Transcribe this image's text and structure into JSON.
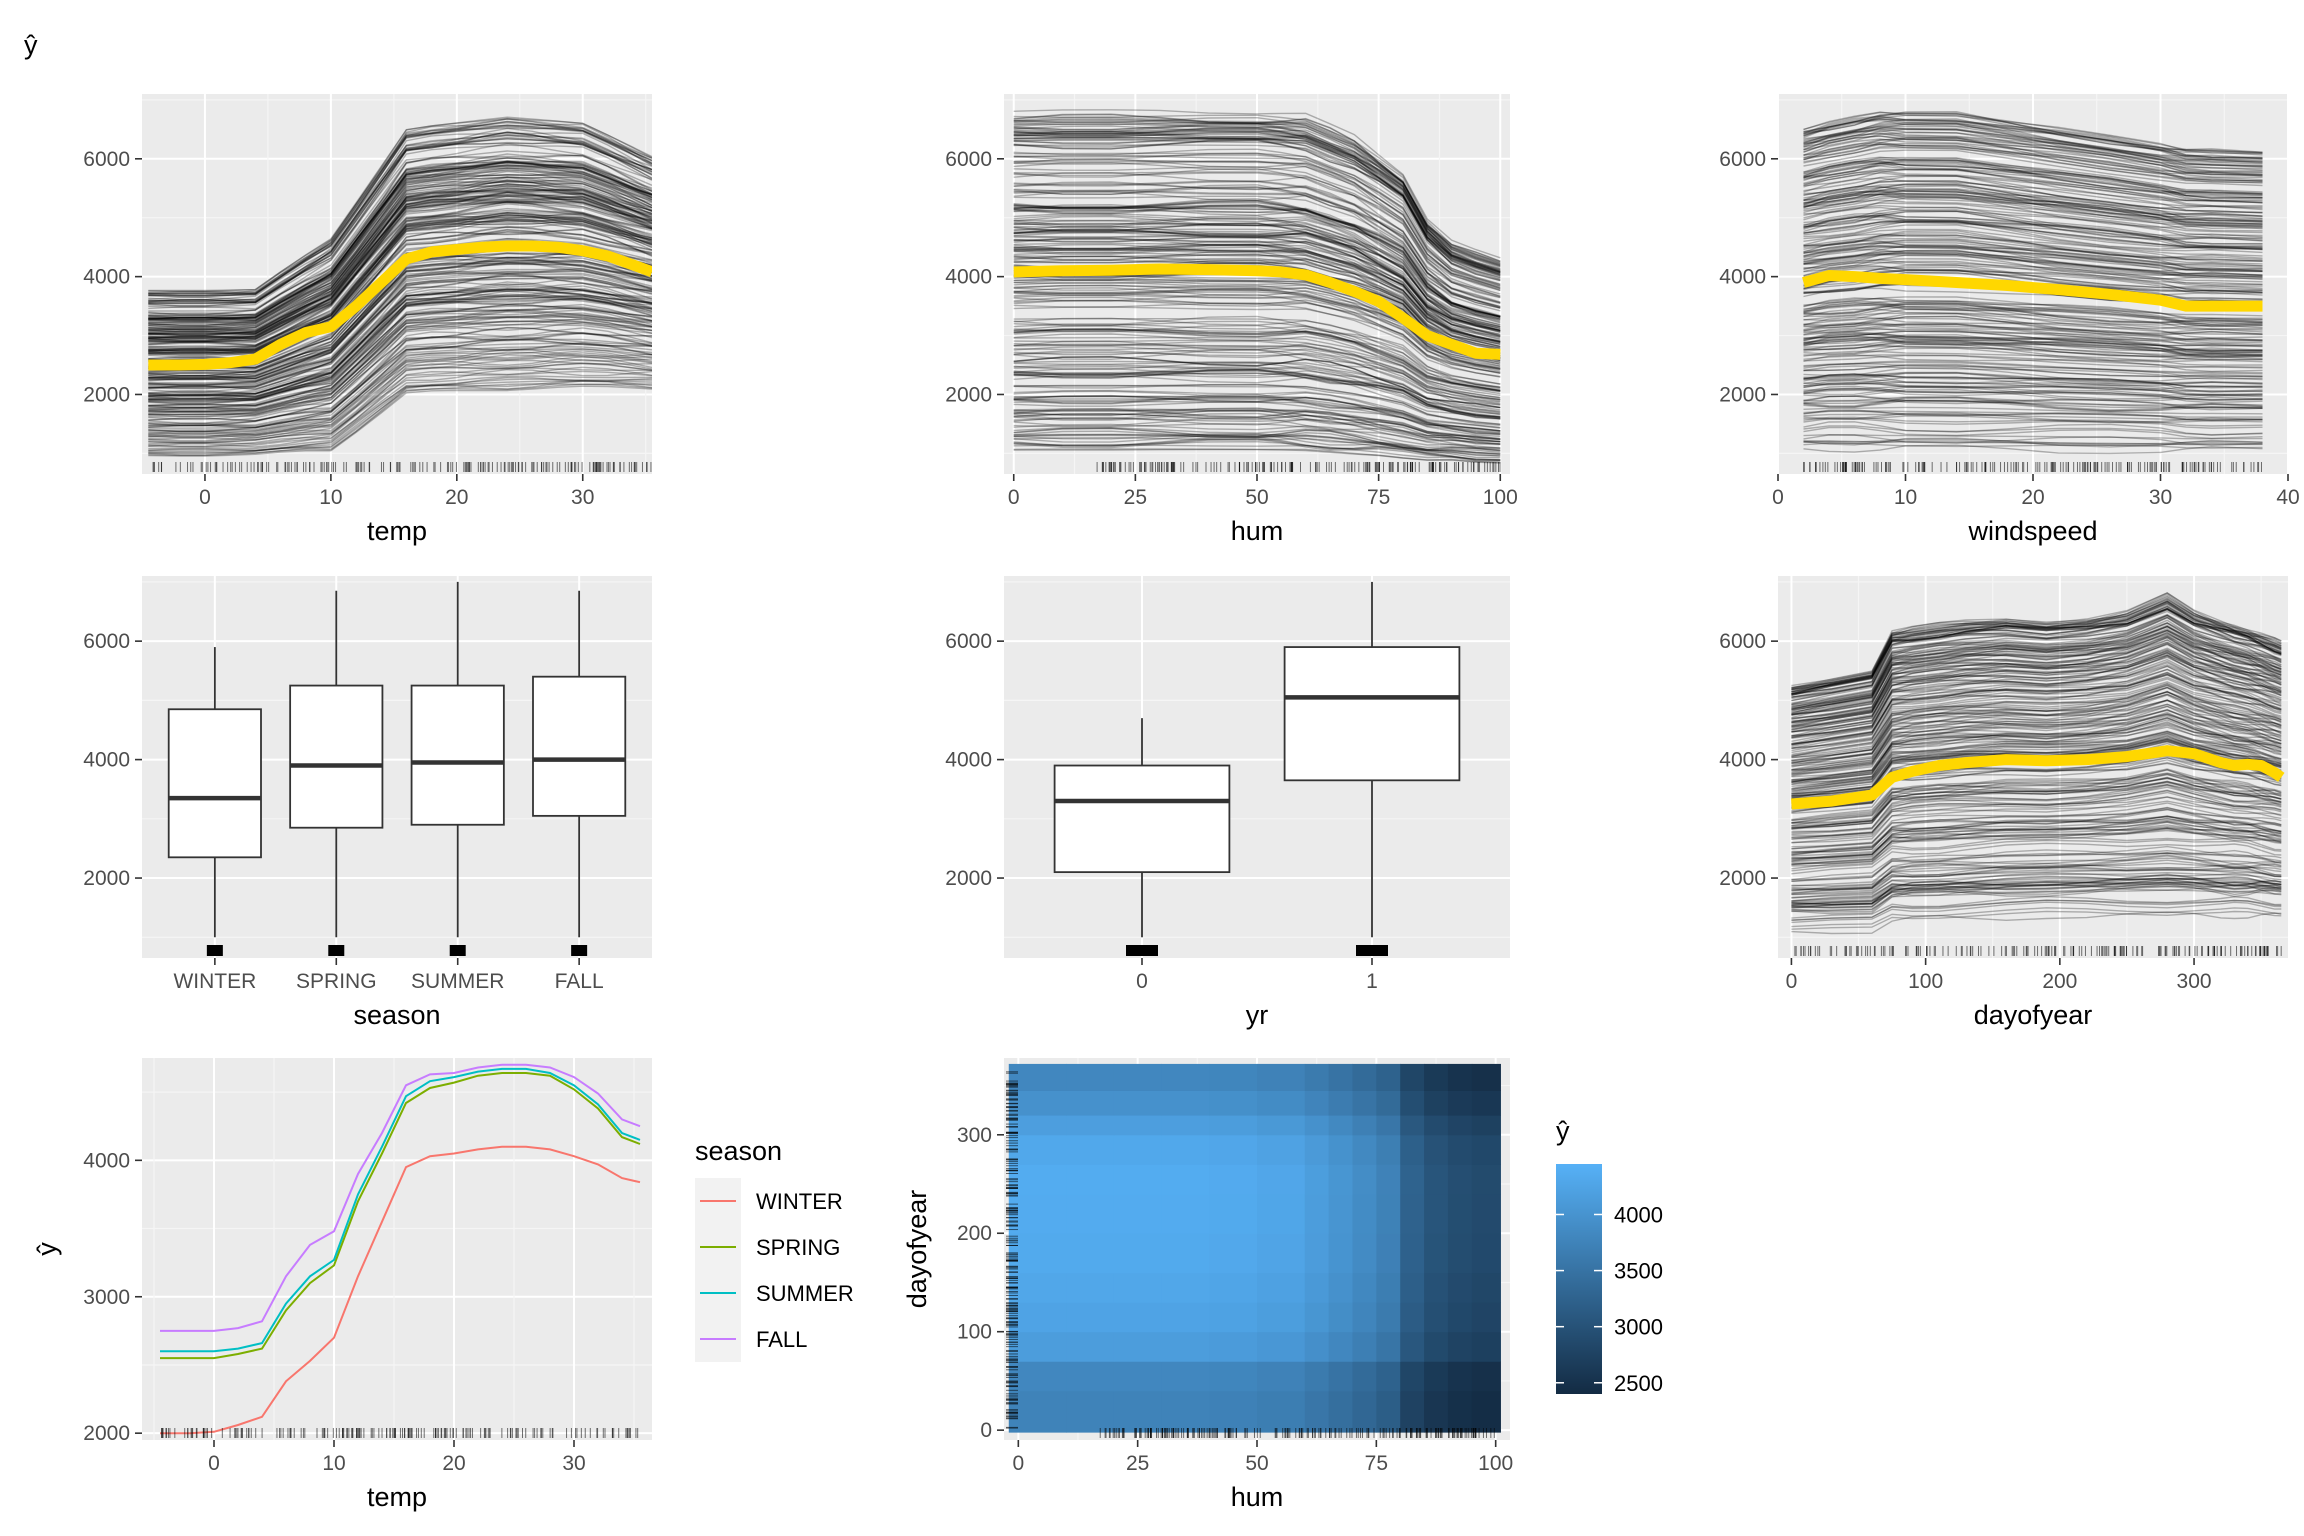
{
  "page": {
    "yhat_label": "ŷ"
  },
  "chart_data": [
    {
      "id": "ice-temp",
      "type": "line",
      "xlabel": "temp",
      "ylabel": "",
      "xlim": [
        -5,
        35.5
      ],
      "ylim": [
        650,
        7100
      ],
      "xticks": [
        0,
        10,
        20,
        30
      ],
      "yticks": [
        2000,
        4000,
        6000
      ],
      "grid": true,
      "pdp_color": "#FFD700",
      "pdp": {
        "x": [
          -4.5,
          -2,
          0,
          2,
          4,
          6,
          8,
          10,
          12,
          14,
          16,
          18,
          20,
          22,
          24,
          26,
          28,
          30,
          32,
          34,
          35.5
        ],
        "y": [
          2500,
          2500,
          2510,
          2540,
          2600,
          2850,
          3050,
          3150,
          3500,
          3900,
          4300,
          4420,
          4460,
          4500,
          4520,
          4520,
          4500,
          4440,
          4350,
          4200,
          4080
        ]
      },
      "ice_band": {
        "x": [
          -4.5,
          4,
          10,
          16,
          24,
          30,
          35.5
        ],
        "low": [
          900,
          900,
          950,
          1950,
          2000,
          2050,
          2050
        ],
        "high": [
          3750,
          3750,
          4600,
          6500,
          6700,
          6600,
          6050
        ]
      },
      "rug": {
        "from": -4.5,
        "to": 35.5
      }
    },
    {
      "id": "ice-hum",
      "type": "line",
      "xlabel": "hum",
      "ylabel": "",
      "xlim": [
        -2,
        102
      ],
      "ylim": [
        650,
        7100
      ],
      "xticks": [
        0,
        25,
        50,
        75,
        100
      ],
      "yticks": [
        2000,
        4000,
        6000
      ],
      "grid": true,
      "pdp_color": "#FFD700",
      "pdp": {
        "x": [
          0,
          10,
          20,
          30,
          40,
          50,
          55,
          60,
          65,
          70,
          75,
          80,
          85,
          90,
          95,
          100
        ],
        "y": [
          4080,
          4100,
          4110,
          4130,
          4120,
          4100,
          4080,
          4030,
          3900,
          3750,
          3580,
          3300,
          3000,
          2850,
          2700,
          2680
        ]
      },
      "ice_band": {
        "x": [
          0,
          25,
          50,
          60,
          70,
          80,
          85,
          90,
          100
        ],
        "low": [
          1000,
          1000,
          1000,
          1000,
          950,
          900,
          850,
          850,
          800
        ],
        "high": [
          6800,
          6800,
          6800,
          6750,
          6400,
          5800,
          5000,
          4600,
          4300
        ]
      },
      "rug": {
        "from": 17,
        "to": 100
      }
    },
    {
      "id": "ice-windspeed",
      "type": "line",
      "xlabel": "windspeed",
      "ylabel": "",
      "xlim": [
        0,
        40
      ],
      "ylim": [
        650,
        7100
      ],
      "xticks": [
        0,
        10,
        20,
        30,
        40
      ],
      "yticks": [
        2000,
        4000,
        6000
      ],
      "grid": true,
      "pdp_color": "#FFD700",
      "pdp": {
        "x": [
          2,
          4,
          6,
          8,
          10,
          14,
          18,
          22,
          26,
          30,
          32,
          34,
          38
        ],
        "y": [
          3900,
          4020,
          4000,
          3970,
          3950,
          3900,
          3850,
          3780,
          3700,
          3600,
          3500,
          3500,
          3500
        ]
      },
      "ice_band": {
        "x": [
          2,
          8,
          14,
          20,
          26,
          32,
          38
        ],
        "low": [
          1000,
          1000,
          1000,
          1000,
          1000,
          1000,
          1000
        ],
        "high": [
          6500,
          6800,
          6800,
          6600,
          6400,
          6200,
          6150
        ]
      },
      "rug": {
        "from": 2,
        "to": 38
      }
    },
    {
      "id": "box-season",
      "type": "bar",
      "xlabel": "season",
      "ylabel": "",
      "ylim": [
        650,
        7100
      ],
      "yticks": [
        2000,
        4000,
        6000
      ],
      "categories": [
        "WINTER",
        "SPRING",
        "SUMMER",
        "FALL"
      ],
      "boxes": [
        {
          "min": 1000,
          "q1": 2350,
          "median": 3350,
          "q3": 4850,
          "max": 5900
        },
        {
          "min": 1000,
          "q1": 2850,
          "median": 3900,
          "q3": 5250,
          "max": 6850
        },
        {
          "min": 1000,
          "q1": 2900,
          "median": 3950,
          "q3": 5250,
          "max": 7000
        },
        {
          "min": 1000,
          "q1": 3050,
          "median": 4000,
          "q3": 5400,
          "max": 6850
        }
      ]
    },
    {
      "id": "box-yr",
      "type": "bar",
      "xlabel": "yr",
      "ylabel": "",
      "ylim": [
        650,
        7100
      ],
      "yticks": [
        2000,
        4000,
        6000
      ],
      "categories": [
        "0",
        "1"
      ],
      "boxes": [
        {
          "min": 1000,
          "q1": 2100,
          "median": 3300,
          "q3": 3900,
          "max": 4700
        },
        {
          "min": 1000,
          "q1": 3650,
          "median": 5050,
          "q3": 5900,
          "max": 7000
        }
      ]
    },
    {
      "id": "ice-dayofyear",
      "type": "line",
      "xlabel": "dayofyear",
      "ylabel": "",
      "xlim": [
        -10,
        370
      ],
      "ylim": [
        650,
        7100
      ],
      "xticks": [
        0,
        100,
        200,
        300
      ],
      "yticks": [
        2000,
        4000,
        6000
      ],
      "grid": true,
      "pdp_color": "#FFD700",
      "pdp": {
        "x": [
          0,
          30,
          60,
          75,
          90,
          110,
          130,
          160,
          190,
          220,
          250,
          280,
          300,
          320,
          330,
          340,
          350,
          360,
          365
        ],
        "y": [
          3250,
          3300,
          3400,
          3700,
          3800,
          3900,
          3950,
          4000,
          3980,
          4000,
          4050,
          4150,
          4100,
          3950,
          3900,
          3920,
          3900,
          3780,
          3700
        ]
      },
      "ice_band": {
        "x": [
          0,
          60,
          75,
          150,
          200,
          250,
          280,
          300,
          340,
          365
        ],
        "low": [
          1050,
          1050,
          1250,
          1250,
          1300,
          1300,
          1300,
          1300,
          1300,
          1300
        ],
        "high": [
          5250,
          5500,
          6200,
          6400,
          6300,
          6500,
          6800,
          6500,
          6200,
          6000
        ]
      },
      "rug": {
        "from": 1,
        "to": 365
      }
    },
    {
      "id": "pdp-temp-season",
      "type": "line",
      "xlabel": "temp",
      "ylabel": "ŷ",
      "xlim": [
        -6,
        36.5
      ],
      "ylim": [
        1950,
        4750
      ],
      "xticks": [
        0,
        10,
        20,
        30
      ],
      "yticks": [
        2000,
        3000,
        4000
      ],
      "grid": true,
      "x": [
        -4.5,
        -2,
        0,
        2,
        4,
        6,
        8,
        10,
        12,
        14,
        16,
        18,
        20,
        22,
        24,
        26,
        28,
        30,
        32,
        34,
        35.5
      ],
      "series": [
        {
          "name": "WINTER",
          "color": "#F8766D",
          "values": [
            2000,
            2000,
            2010,
            2060,
            2120,
            2380,
            2530,
            2700,
            3150,
            3550,
            3950,
            4030,
            4050,
            4080,
            4100,
            4100,
            4080,
            4030,
            3970,
            3870,
            3840
          ]
        },
        {
          "name": "SPRING",
          "color": "#7CAE00",
          "values": [
            2550,
            2550,
            2550,
            2580,
            2620,
            2900,
            3100,
            3230,
            3700,
            4050,
            4420,
            4530,
            4570,
            4620,
            4640,
            4640,
            4620,
            4520,
            4380,
            4170,
            4120
          ]
        },
        {
          "name": "SUMMER",
          "color": "#00BFC4",
          "values": [
            2600,
            2600,
            2600,
            2620,
            2660,
            2950,
            3150,
            3270,
            3750,
            4100,
            4470,
            4580,
            4610,
            4650,
            4670,
            4670,
            4640,
            4550,
            4410,
            4200,
            4150
          ]
        },
        {
          "name": "FALL",
          "color": "#C77CFF",
          "values": [
            2750,
            2750,
            2750,
            2770,
            2820,
            3150,
            3380,
            3480,
            3900,
            4200,
            4550,
            4630,
            4640,
            4680,
            4700,
            4700,
            4680,
            4610,
            4490,
            4300,
            4250
          ]
        }
      ],
      "legend": {
        "title": "season",
        "position": "right"
      },
      "rug": {
        "from": -4.5,
        "to": 35.5
      }
    },
    {
      "id": "heatmap-hum-dayofyear",
      "type": "heatmap",
      "xlabel": "hum",
      "ylabel": "dayofyear",
      "xlim": [
        -3,
        103
      ],
      "ylim": [
        -10,
        378
      ],
      "xticks": [
        0,
        25,
        50,
        75,
        100
      ],
      "yticks": [
        0,
        100,
        200,
        300
      ],
      "x_edges": [
        -2,
        10,
        20,
        30,
        40,
        50,
        60,
        65,
        70,
        75,
        80,
        85,
        90,
        95,
        101
      ],
      "y_edges": [
        -2,
        40,
        70,
        100,
        130,
        160,
        200,
        240,
        270,
        300,
        320,
        345,
        372
      ],
      "row_effect": [
        -320,
        -250,
        80,
        180,
        230,
        280,
        300,
        310,
        250,
        100,
        -100,
        -250
      ],
      "col_effect": [
        0,
        0,
        0,
        0,
        -20,
        -80,
        -200,
        -320,
        -450,
        -600,
        -1050,
        -1250,
        -1350,
        -1400
      ],
      "base": 4060,
      "colorbar": {
        "title": "ŷ",
        "min": 2400,
        "max": 4450,
        "ticks": [
          2500,
          3000,
          3500,
          4000
        ],
        "low_color": "#132B43",
        "high_color": "#56B1F7"
      },
      "rug_x": {
        "from": 17,
        "to": 100
      },
      "rug_y": {
        "from": 1,
        "to": 365
      }
    }
  ]
}
